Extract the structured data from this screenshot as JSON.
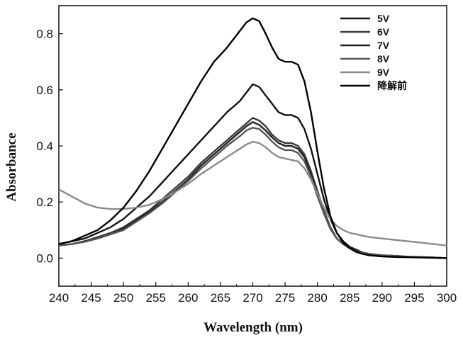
{
  "chart_data": {
    "type": "line",
    "title": "",
    "xlabel": "Wavelength (nm)",
    "ylabel": "Absorbance",
    "xlim": [
      240,
      300
    ],
    "ylim": [
      -0.1,
      0.9
    ],
    "xticks": [
      240,
      245,
      250,
      255,
      260,
      265,
      270,
      275,
      280,
      285,
      290,
      295,
      300
    ],
    "yticks": [
      0.0,
      0.2,
      0.4,
      0.6,
      0.8
    ],
    "ytick_labels": [
      "0.0",
      "0.2",
      "0.4",
      "0.6",
      "0.8"
    ],
    "grid": false,
    "legend_position": "top-right",
    "series": [
      {
        "name": "5V",
        "color": "#111111",
        "x": [
          240,
          242,
          244,
          246,
          248,
          250,
          252,
          254,
          256,
          258,
          260,
          262,
          264,
          266,
          268,
          269,
          270,
          271,
          272,
          273,
          274,
          275,
          276,
          277,
          278,
          279,
          280,
          281,
          282,
          283,
          284,
          285,
          286,
          287,
          288,
          290,
          292,
          294,
          296,
          298,
          300
        ],
        "y": [
          0.05,
          0.06,
          0.07,
          0.09,
          0.11,
          0.14,
          0.18,
          0.22,
          0.27,
          0.32,
          0.37,
          0.42,
          0.47,
          0.52,
          0.56,
          0.59,
          0.62,
          0.61,
          0.58,
          0.55,
          0.52,
          0.51,
          0.51,
          0.5,
          0.46,
          0.39,
          0.3,
          0.21,
          0.14,
          0.09,
          0.06,
          0.04,
          0.03,
          0.02,
          0.015,
          0.01,
          0.008,
          0.005,
          0.003,
          0.002,
          0.0
        ]
      },
      {
        "name": "6V",
        "color": "#3a3a3a",
        "x": [
          240,
          242,
          244,
          246,
          248,
          250,
          252,
          254,
          256,
          258,
          260,
          262,
          264,
          266,
          268,
          269,
          270,
          271,
          272,
          273,
          274,
          275,
          276,
          277,
          278,
          279,
          280,
          281,
          282,
          283,
          284,
          285,
          286,
          287,
          288,
          290,
          292,
          294,
          296,
          298,
          300
        ],
        "y": [
          0.045,
          0.05,
          0.06,
          0.075,
          0.09,
          0.11,
          0.14,
          0.17,
          0.21,
          0.25,
          0.29,
          0.34,
          0.38,
          0.42,
          0.46,
          0.48,
          0.5,
          0.49,
          0.47,
          0.44,
          0.42,
          0.41,
          0.41,
          0.4,
          0.37,
          0.31,
          0.24,
          0.17,
          0.11,
          0.07,
          0.05,
          0.035,
          0.025,
          0.02,
          0.015,
          0.01,
          0.008,
          0.005,
          0.004,
          0.002,
          0.0
        ]
      },
      {
        "name": "7V",
        "color": "#222222",
        "x": [
          240,
          242,
          244,
          246,
          248,
          250,
          252,
          254,
          256,
          258,
          260,
          262,
          264,
          266,
          268,
          269,
          270,
          271,
          272,
          273,
          274,
          275,
          276,
          277,
          278,
          279,
          280,
          281,
          282,
          283,
          284,
          285,
          286,
          287,
          288,
          290,
          292,
          294,
          296,
          298,
          300
        ],
        "y": [
          0.045,
          0.05,
          0.06,
          0.07,
          0.085,
          0.105,
          0.135,
          0.165,
          0.2,
          0.24,
          0.28,
          0.33,
          0.37,
          0.41,
          0.45,
          0.47,
          0.485,
          0.475,
          0.455,
          0.43,
          0.41,
          0.4,
          0.4,
          0.39,
          0.36,
          0.3,
          0.23,
          0.16,
          0.105,
          0.07,
          0.05,
          0.035,
          0.025,
          0.02,
          0.015,
          0.01,
          0.008,
          0.005,
          0.004,
          0.002,
          0.0
        ]
      },
      {
        "name": "8V",
        "color": "#555555",
        "x": [
          240,
          242,
          244,
          246,
          248,
          250,
          252,
          254,
          256,
          258,
          260,
          262,
          264,
          266,
          268,
          269,
          270,
          271,
          272,
          273,
          274,
          275,
          276,
          277,
          278,
          279,
          280,
          281,
          282,
          283,
          284,
          285,
          286,
          287,
          288,
          290,
          292,
          294,
          296,
          298,
          300
        ],
        "y": [
          0.045,
          0.05,
          0.058,
          0.07,
          0.085,
          0.1,
          0.13,
          0.16,
          0.195,
          0.235,
          0.275,
          0.32,
          0.36,
          0.4,
          0.435,
          0.455,
          0.465,
          0.46,
          0.44,
          0.415,
          0.395,
          0.385,
          0.385,
          0.375,
          0.345,
          0.29,
          0.22,
          0.16,
          0.105,
          0.07,
          0.05,
          0.035,
          0.025,
          0.02,
          0.015,
          0.01,
          0.008,
          0.005,
          0.004,
          0.002,
          0.0
        ]
      },
      {
        "name": "9V",
        "color": "#8a8a8a",
        "x": [
          240,
          242,
          244,
          246,
          248,
          250,
          252,
          254,
          256,
          258,
          260,
          262,
          264,
          266,
          268,
          269,
          270,
          271,
          272,
          273,
          274,
          275,
          276,
          277,
          278,
          279,
          280,
          281,
          282,
          283,
          284,
          285,
          286,
          287,
          288,
          290,
          292,
          294,
          296,
          298,
          300
        ],
        "y": [
          0.245,
          0.22,
          0.195,
          0.18,
          0.175,
          0.175,
          0.18,
          0.19,
          0.21,
          0.235,
          0.265,
          0.3,
          0.33,
          0.36,
          0.39,
          0.405,
          0.415,
          0.41,
          0.395,
          0.375,
          0.36,
          0.355,
          0.35,
          0.345,
          0.32,
          0.28,
          0.23,
          0.18,
          0.14,
          0.115,
          0.1,
          0.09,
          0.085,
          0.08,
          0.075,
          0.07,
          0.065,
          0.06,
          0.055,
          0.05,
          0.045
        ]
      },
      {
        "name": "降解前",
        "color": "#000000",
        "x": [
          240,
          242,
          244,
          246,
          248,
          250,
          252,
          254,
          256,
          258,
          260,
          262,
          264,
          266,
          268,
          269,
          270,
          271,
          272,
          273,
          274,
          275,
          276,
          277,
          278,
          279,
          280,
          281,
          282,
          283,
          284,
          285,
          286,
          287,
          288,
          290,
          292,
          294,
          296,
          298,
          300
        ],
        "y": [
          0.05,
          0.06,
          0.08,
          0.1,
          0.135,
          0.18,
          0.24,
          0.31,
          0.39,
          0.47,
          0.55,
          0.63,
          0.7,
          0.75,
          0.81,
          0.84,
          0.855,
          0.845,
          0.8,
          0.75,
          0.71,
          0.7,
          0.7,
          0.69,
          0.63,
          0.52,
          0.38,
          0.25,
          0.15,
          0.09,
          0.055,
          0.035,
          0.022,
          0.015,
          0.01,
          0.006,
          0.004,
          0.003,
          0.002,
          0.001,
          0.0
        ]
      }
    ]
  }
}
